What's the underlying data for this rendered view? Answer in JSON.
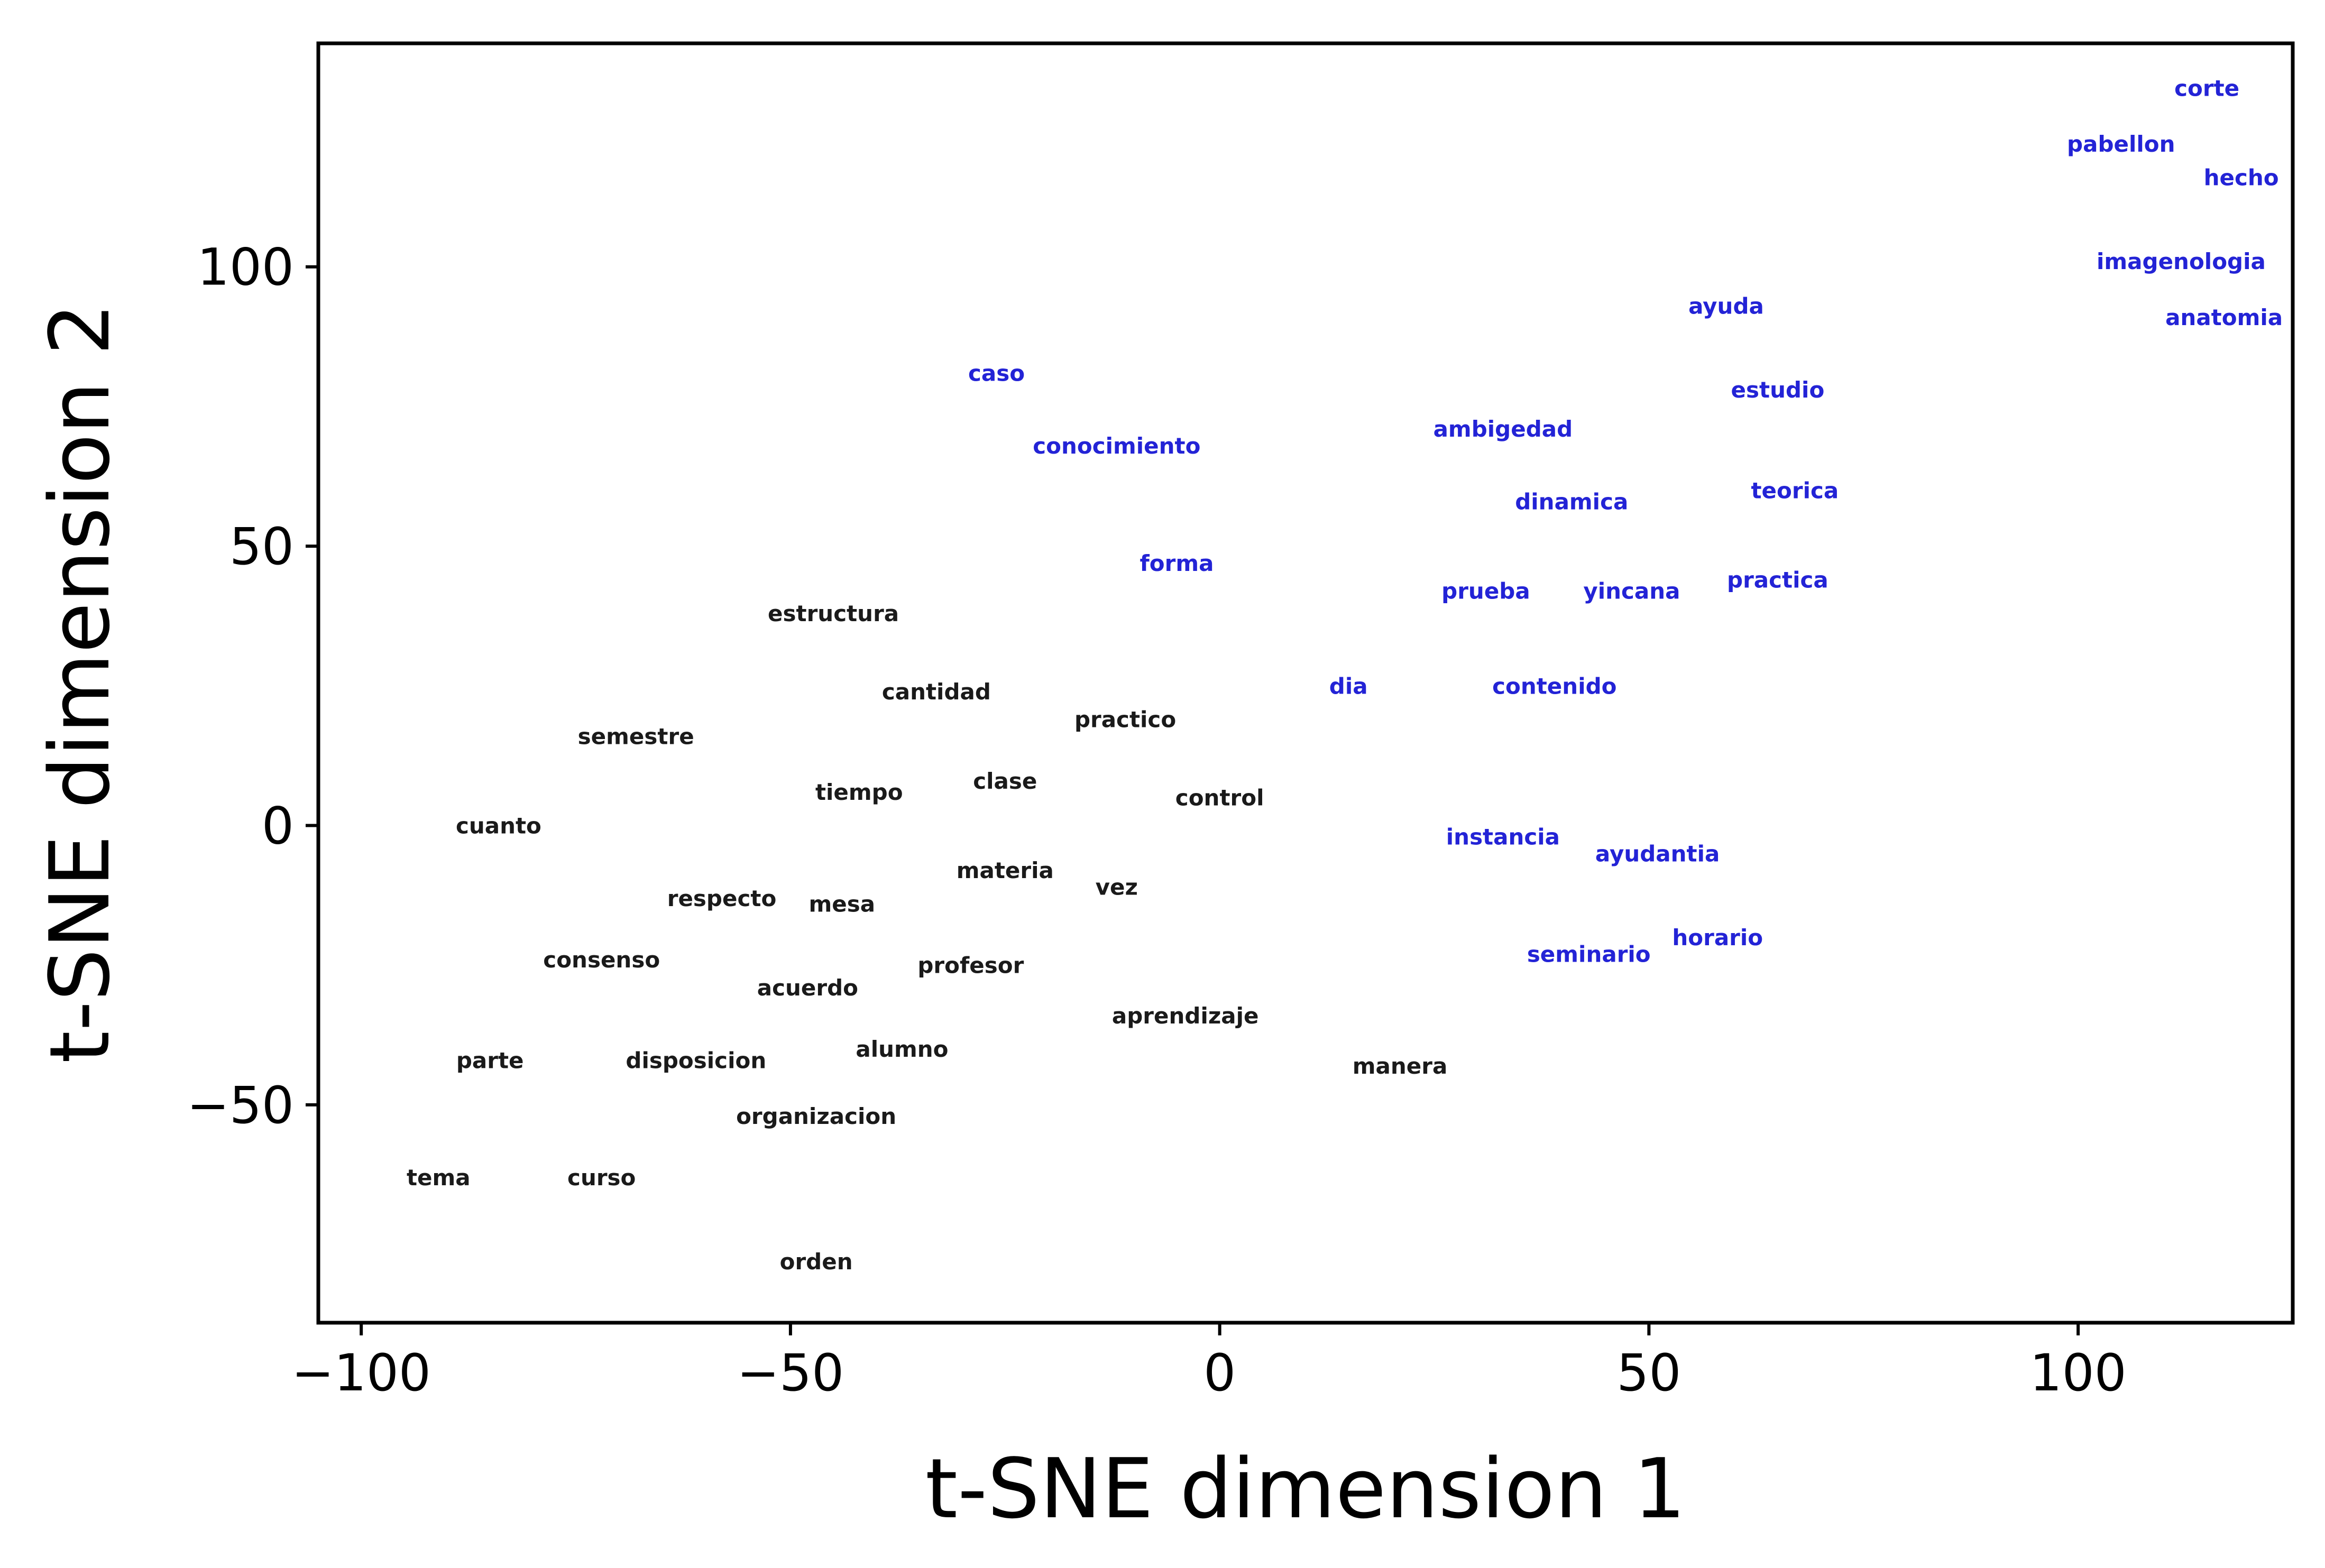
{
  "chart_data": {
    "type": "scatter",
    "title": "",
    "xlabel": "t-SNE dimension 1",
    "ylabel": "t-SNE dimension 2",
    "xlim": [
      -105,
      125
    ],
    "ylim": [
      -89,
      140
    ],
    "x_ticks": [
      -100,
      -50,
      0,
      50,
      100
    ],
    "x_tick_labels": [
      "−100",
      "−50",
      "0",
      "50",
      "100"
    ],
    "y_ticks": [
      -50,
      0,
      50,
      100
    ],
    "y_tick_labels": [
      "−50",
      "0",
      "50",
      "100"
    ],
    "grid": false,
    "legend": "none",
    "colors": {
      "group_black": "#1a1a1a",
      "group_blue": "#2323d6"
    },
    "series": [
      {
        "color": "#1a1a1a",
        "points": [
          {
            "label": "estructura",
            "x": -45,
            "y": 38
          },
          {
            "label": "cantidad",
            "x": -33,
            "y": 24
          },
          {
            "label": "practico",
            "x": -11,
            "y": 19
          },
          {
            "label": "semestre",
            "x": -68,
            "y": 16
          },
          {
            "label": "tiempo",
            "x": -42,
            "y": 6
          },
          {
            "label": "clase",
            "x": -25,
            "y": 8
          },
          {
            "label": "control",
            "x": 0,
            "y": 5
          },
          {
            "label": "cuanto",
            "x": -84,
            "y": 0
          },
          {
            "label": "materia",
            "x": -25,
            "y": -8
          },
          {
            "label": "vez",
            "x": -12,
            "y": -11
          },
          {
            "label": "respecto",
            "x": -58,
            "y": -13
          },
          {
            "label": "mesa",
            "x": -44,
            "y": -14
          },
          {
            "label": "consenso",
            "x": -72,
            "y": -24
          },
          {
            "label": "profesor",
            "x": -29,
            "y": -25
          },
          {
            "label": "acuerdo",
            "x": -48,
            "y": -29
          },
          {
            "label": "aprendizaje",
            "x": -4,
            "y": -34
          },
          {
            "label": "alumno",
            "x": -37,
            "y": -40
          },
          {
            "label": "parte",
            "x": -85,
            "y": -42
          },
          {
            "label": "disposicion",
            "x": -61,
            "y": -42
          },
          {
            "label": "manera",
            "x": 21,
            "y": -43
          },
          {
            "label": "organizacion",
            "x": -47,
            "y": -52
          },
          {
            "label": "tema",
            "x": -91,
            "y": -63
          },
          {
            "label": "curso",
            "x": -72,
            "y": -63
          },
          {
            "label": "orden",
            "x": -47,
            "y": -78
          }
        ]
      },
      {
        "color": "#2323d6",
        "points": [
          {
            "label": "corte",
            "x": 115,
            "y": 132
          },
          {
            "label": "pabellon",
            "x": 105,
            "y": 122
          },
          {
            "label": "hecho",
            "x": 119,
            "y": 116
          },
          {
            "label": "imagenologia",
            "x": 112,
            "y": 101
          },
          {
            "label": "anatomia",
            "x": 117,
            "y": 91
          },
          {
            "label": "ayuda",
            "x": 59,
            "y": 93
          },
          {
            "label": "caso",
            "x": -26,
            "y": 81
          },
          {
            "label": "estudio",
            "x": 65,
            "y": 78
          },
          {
            "label": "ambigedad",
            "x": 33,
            "y": 71
          },
          {
            "label": "conocimiento",
            "x": -12,
            "y": 68
          },
          {
            "label": "teorica",
            "x": 67,
            "y": 60
          },
          {
            "label": "dinamica",
            "x": 41,
            "y": 58
          },
          {
            "label": "forma",
            "x": -5,
            "y": 47
          },
          {
            "label": "prueba",
            "x": 31,
            "y": 42
          },
          {
            "label": "yincana",
            "x": 48,
            "y": 42
          },
          {
            "label": "practica",
            "x": 65,
            "y": 44
          },
          {
            "label": "dia",
            "x": 15,
            "y": 25
          },
          {
            "label": "contenido",
            "x": 39,
            "y": 25
          },
          {
            "label": "instancia",
            "x": 33,
            "y": -2
          },
          {
            "label": "ayudantia",
            "x": 51,
            "y": -5
          },
          {
            "label": "seminario",
            "x": 43,
            "y": -23
          },
          {
            "label": "horario",
            "x": 58,
            "y": -20
          }
        ]
      }
    ]
  }
}
